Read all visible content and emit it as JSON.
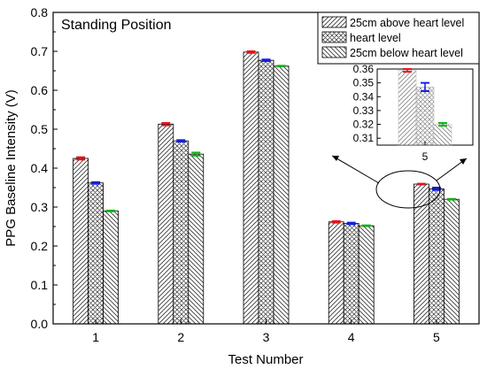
{
  "chart_data": {
    "type": "bar",
    "title": "Standing Position",
    "xlabel": "Test Number",
    "ylabel": "PPG Baseline Intensity (V)",
    "ylim": [
      0,
      0.8
    ],
    "yticks": [
      "0.0",
      "0.1",
      "0.2",
      "0.3",
      "0.4",
      "0.5",
      "0.6",
      "0.7",
      "0.8"
    ],
    "categories": [
      "1",
      "2",
      "3",
      "4",
      "5"
    ],
    "grid": false,
    "legend_position": "top-right",
    "series": [
      {
        "name": "25cm above heart level",
        "pattern": "diagonal-up",
        "errorbar_color": "#e8141b",
        "values": [
          0.425,
          0.513,
          0.698,
          0.262,
          0.359
        ],
        "errors": [
          0.003,
          0.003,
          0.002,
          0.002,
          0.001
        ]
      },
      {
        "name": "heart level",
        "pattern": "crosshatch",
        "errorbar_color": "#1420e8",
        "values": [
          0.362,
          0.47,
          0.677,
          0.258,
          0.347
        ],
        "errors": [
          0.002,
          0.002,
          0.002,
          0.002,
          0.003
        ]
      },
      {
        "name": "25cm below heart level",
        "pattern": "diagonal-down",
        "errorbar_color": "#14b01b",
        "values": [
          0.29,
          0.436,
          0.662,
          0.252,
          0.32
        ],
        "errors": [
          0.001,
          0.004,
          0.001,
          0.001,
          0.001
        ]
      }
    ],
    "inset": {
      "category": "5",
      "ylim": [
        0.305,
        0.36
      ],
      "yticks": [
        "0.31",
        "0.32",
        "0.33",
        "0.34",
        "0.35",
        "0.36"
      ],
      "values": [
        0.359,
        0.347,
        0.32
      ],
      "errors": [
        0.001,
        0.003,
        0.001
      ]
    }
  }
}
